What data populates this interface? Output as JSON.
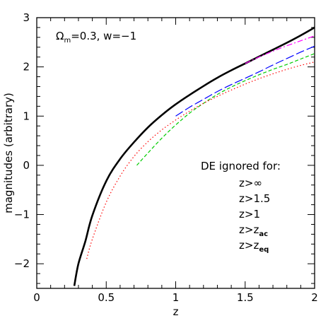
{
  "chart_data": {
    "type": "line",
    "xlabel": "z",
    "ylabel": "magnitudes (arbitrary)",
    "xlim": [
      0,
      2
    ],
    "ylim": [
      -2.5,
      3
    ],
    "xticks": [
      0,
      0.5,
      1,
      1.5,
      2
    ],
    "xtick_labels": [
      "0",
      "0.5",
      "1",
      "1.5",
      "2"
    ],
    "yticks": [
      -2,
      -1,
      0,
      1,
      2,
      3
    ],
    "ytick_labels": [
      "−2",
      "−1",
      "0",
      "1",
      "2",
      "3"
    ],
    "annotation": {
      "omega": "Ω",
      "omega_sub": "m",
      "rest": "=0.3,  w=−1"
    },
    "legend_title": "DE ignored for:",
    "legend_entries": [
      {
        "main": "z>∞",
        "sub": ""
      },
      {
        "main": "z>1.5",
        "sub": ""
      },
      {
        "main": "z>1",
        "sub": ""
      },
      {
        "main": "z>z",
        "sub": "ac"
      },
      {
        "main": "z>z",
        "sub": "eq"
      }
    ],
    "series": [
      {
        "color": "#000000",
        "dash": "solid",
        "width": 2.6,
        "x": [
          0.27,
          0.3,
          0.35,
          0.4,
          0.5,
          0.6,
          0.7,
          0.8,
          0.9,
          1.0,
          1.1,
          1.2,
          1.3,
          1.4,
          1.5,
          1.6,
          1.7,
          1.8,
          1.9,
          2.0
        ],
        "y": [
          -2.45,
          -2.0,
          -1.54,
          -1.02,
          -0.32,
          0.13,
          0.47,
          0.77,
          1.02,
          1.24,
          1.43,
          1.61,
          1.78,
          1.93,
          2.07,
          2.21,
          2.35,
          2.49,
          2.64,
          2.8
        ]
      },
      {
        "color": "#ff00ff",
        "dash": "dashdot",
        "width": 1.2,
        "x": [
          1.5,
          1.6,
          1.7,
          1.8,
          1.9,
          2.0
        ],
        "y": [
          2.07,
          2.2,
          2.32,
          2.43,
          2.53,
          2.63
        ]
      },
      {
        "color": "#0000ff",
        "dash": "longdash",
        "width": 1.2,
        "x": [
          1.0,
          1.1,
          1.2,
          1.3,
          1.4,
          1.5,
          1.6,
          1.7,
          1.8,
          1.9,
          2.0
        ],
        "y": [
          1.0,
          1.18,
          1.34,
          1.5,
          1.64,
          1.77,
          1.9,
          2.04,
          2.17,
          2.3,
          2.42
        ]
      },
      {
        "color": "#00cc00",
        "dash": "dash",
        "width": 1.2,
        "x": [
          0.72,
          0.8,
          0.9,
          1.0,
          1.1,
          1.2,
          1.3,
          1.4,
          1.5,
          1.6,
          1.7,
          1.8,
          1.9,
          2.0
        ],
        "y": [
          0.0,
          0.25,
          0.55,
          0.82,
          1.06,
          1.26,
          1.44,
          1.59,
          1.72,
          1.84,
          1.95,
          2.05,
          2.16,
          2.27
        ]
      },
      {
        "color": "#ff0000",
        "dash": "dot",
        "width": 1.2,
        "x": [
          0.36,
          0.4,
          0.5,
          0.6,
          0.7,
          0.8,
          0.9,
          1.0,
          1.1,
          1.2,
          1.3,
          1.4,
          1.5,
          1.6,
          1.7,
          1.8,
          1.9,
          2.0
        ],
        "y": [
          -1.9,
          -1.5,
          -0.75,
          -0.22,
          0.18,
          0.48,
          0.72,
          0.92,
          1.1,
          1.26,
          1.4,
          1.53,
          1.65,
          1.76,
          1.86,
          1.95,
          2.03,
          2.1
        ]
      }
    ]
  }
}
